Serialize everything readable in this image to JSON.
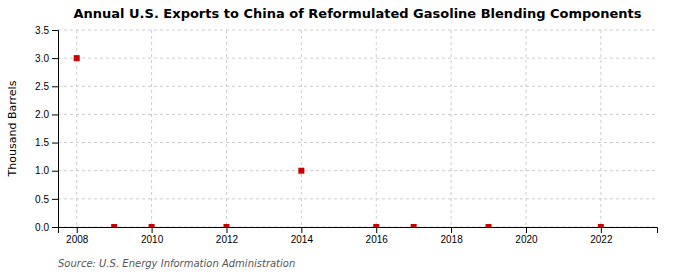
{
  "chart_data": {
    "type": "scatter",
    "title": "Annual U.S. Exports to China of Reformulated Gasoline Blending Components",
    "ylabel": "Thousand Barrels",
    "annotations": [
      "Source: U.S. Energy Information Administration"
    ],
    "x": [
      2008,
      2009,
      2010,
      2012,
      2014,
      2016,
      2017,
      2019,
      2022
    ],
    "values": [
      3.0,
      0.0,
      0.0,
      0.0,
      1.0,
      0.0,
      0.0,
      0.0,
      0.0
    ],
    "color": "#cc0000",
    "marker": "square",
    "xlim": [
      2007.5,
      2023.5
    ],
    "ylim": [
      0.0,
      3.5
    ],
    "xticks": [
      2008,
      2010,
      2012,
      2014,
      2016,
      2018,
      2020,
      2022
    ],
    "yticks": [
      {
        "value": 0.0,
        "label": "0.0"
      },
      {
        "value": 0.5,
        "label": "0.5"
      },
      {
        "value": 1.0,
        "label": "1.0"
      },
      {
        "value": 1.5,
        "label": "1.5"
      },
      {
        "value": 2.0,
        "label": "2.0"
      },
      {
        "value": 2.5,
        "label": "2.5"
      },
      {
        "value": 3.0,
        "label": "3.0"
      },
      {
        "value": 3.5,
        "label": "3.5"
      }
    ],
    "grid": true
  }
}
